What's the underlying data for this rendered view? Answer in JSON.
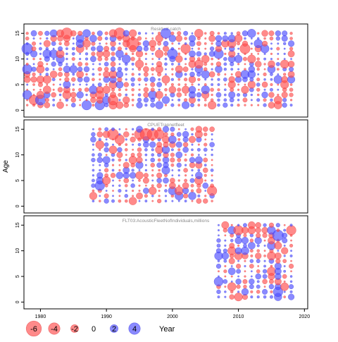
{
  "chart_data": {
    "type": "scatter",
    "subtype": "bubble-residuals",
    "ylabel": "Age",
    "xlabel": "Year",
    "x_ticks": [
      1980,
      1990,
      2000,
      2010,
      2020
    ],
    "y_ticks": [
      0,
      5,
      10,
      15
    ],
    "xlim": [
      1977.5,
      2020.5
    ],
    "ylim": [
      -0.5,
      16
    ],
    "ages": [
      1,
      15
    ],
    "colors": {
      "positive": "#4b4bff",
      "negative": "#ff4b4b",
      "frame": "#000000"
    },
    "opacity": 0.65,
    "legend": {
      "placement": "bottom-left",
      "items": [
        {
          "label": "-6",
          "value": -6
        },
        {
          "label": "-4",
          "value": -4
        },
        {
          "label": "-2",
          "value": -2
        },
        {
          "label": "0",
          "value": 0
        },
        {
          "label": "2",
          "value": 2
        },
        {
          "label": "4",
          "value": 4
        }
      ]
    },
    "panels": [
      {
        "title": "Residual catch",
        "years": [
          1978,
          2018
        ],
        "notable_points": [
          {
            "year": 1978,
            "age": 12,
            "residual": 3.5
          },
          {
            "year": 1978,
            "age": 8,
            "residual": 3.0
          },
          {
            "year": 1978,
            "age": 3,
            "residual": 2.8
          },
          {
            "year": 1979,
            "age": 2,
            "residual": -3.0
          },
          {
            "year": 1980,
            "age": 2,
            "residual": 3.2
          },
          {
            "year": 1984,
            "age": 15,
            "residual": -3.5
          },
          {
            "year": 1987,
            "age": 1,
            "residual": 3.0
          },
          {
            "year": 1989,
            "age": 1,
            "residual": 3.0
          },
          {
            "year": 1991,
            "age": 2,
            "residual": -3.2
          },
          {
            "year": 1992,
            "age": 15,
            "residual": -3.5
          },
          {
            "year": 1994,
            "age": 13,
            "residual": -4.0
          },
          {
            "year": 1999,
            "age": 15,
            "residual": 3.2
          },
          {
            "year": 2000,
            "age": 11,
            "residual": 3.2
          },
          {
            "year": 2002,
            "age": 12,
            "residual": -3.0
          },
          {
            "year": 2007,
            "age": 11,
            "residual": 3.0
          },
          {
            "year": 2011,
            "age": 12,
            "residual": -3.2
          }
        ]
      },
      {
        "title": "CPUETrapnetfleet",
        "years": [
          1988,
          2006
        ],
        "notable_points": [
          {
            "year": 1991,
            "age": 14,
            "residual": -3.5
          },
          {
            "year": 1992,
            "age": 13,
            "residual": -3.0
          },
          {
            "year": 1995,
            "age": 14,
            "residual": -3.2
          },
          {
            "year": 1996,
            "age": 14,
            "residual": -3.8
          },
          {
            "year": 1997,
            "age": 14,
            "residual": -3.5
          },
          {
            "year": 1998,
            "age": 14,
            "residual": -3.0
          },
          {
            "year": 1989,
            "age": 4,
            "residual": 3.0
          },
          {
            "year": 2006,
            "age": 3,
            "residual": -3.0
          }
        ]
      },
      {
        "title": "FLT03:AcousticFleetNofIndividuals,millions",
        "years": [
          2007,
          2018
        ],
        "notable_points": [
          {
            "year": 2016,
            "age": 13,
            "residual": 3.5
          },
          {
            "year": 2018,
            "age": 14,
            "residual": -3.0
          },
          {
            "year": 2007,
            "age": 4,
            "residual": 2.8
          },
          {
            "year": 2010,
            "age": 14,
            "residual": -3.0
          },
          {
            "year": 2016,
            "age": 2,
            "residual": 3.0
          }
        ]
      }
    ]
  }
}
